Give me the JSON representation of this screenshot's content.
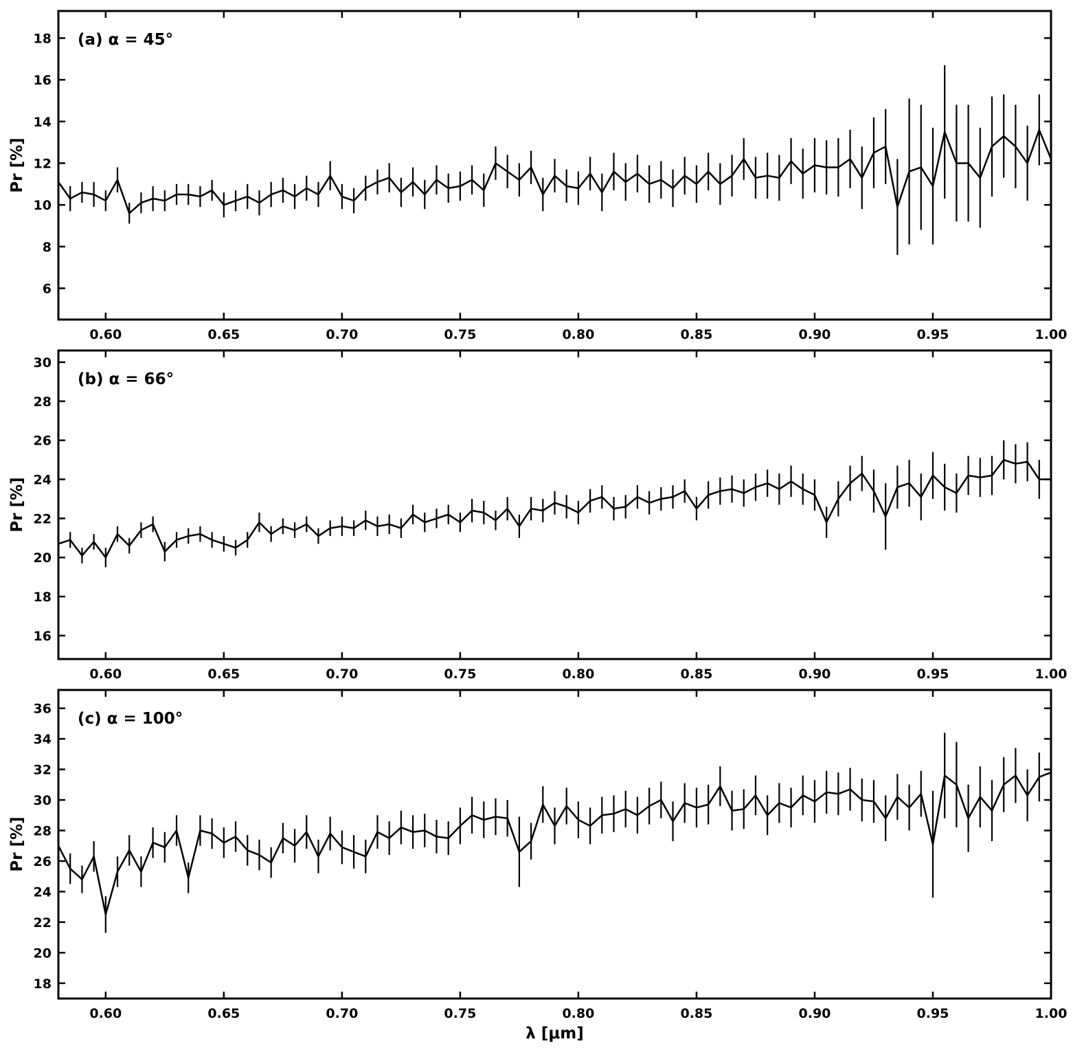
{
  "chart_data": [
    {
      "type": "line",
      "title": "(a) α = 45°",
      "ylabel": "Pr [%]",
      "color": "#000000",
      "x": [
        0.58,
        0.585,
        0.59,
        0.595,
        0.6,
        0.605,
        0.61,
        0.615,
        0.62,
        0.625,
        0.63,
        0.635,
        0.64,
        0.645,
        0.65,
        0.655,
        0.66,
        0.665,
        0.67,
        0.675,
        0.68,
        0.685,
        0.69,
        0.695,
        0.7,
        0.705,
        0.71,
        0.715,
        0.72,
        0.725,
        0.73,
        0.735,
        0.74,
        0.745,
        0.75,
        0.755,
        0.76,
        0.765,
        0.77,
        0.775,
        0.78,
        0.785,
        0.79,
        0.795,
        0.8,
        0.805,
        0.81,
        0.815,
        0.82,
        0.825,
        0.83,
        0.835,
        0.84,
        0.845,
        0.85,
        0.855,
        0.86,
        0.865,
        0.87,
        0.875,
        0.88,
        0.885,
        0.89,
        0.895,
        0.9,
        0.905,
        0.91,
        0.915,
        0.92,
        0.925,
        0.93,
        0.935,
        0.94,
        0.945,
        0.95,
        0.955,
        0.96,
        0.965,
        0.97,
        0.975,
        0.98,
        0.985,
        0.99,
        0.995,
        1.0
      ],
      "values": [
        11.1,
        10.3,
        10.6,
        10.5,
        10.2,
        11.2,
        9.6,
        10.1,
        10.3,
        10.2,
        10.5,
        10.5,
        10.4,
        10.7,
        10.0,
        10.2,
        10.4,
        10.1,
        10.5,
        10.7,
        10.4,
        10.8,
        10.5,
        11.4,
        10.4,
        10.2,
        10.8,
        11.1,
        11.3,
        10.6,
        11.1,
        10.5,
        11.2,
        10.8,
        10.9,
        11.2,
        10.7,
        12.0,
        11.6,
        11.2,
        11.8,
        10.5,
        11.4,
        10.9,
        10.8,
        11.5,
        10.6,
        11.6,
        11.1,
        11.5,
        11.0,
        11.2,
        10.8,
        11.4,
        11.0,
        11.6,
        11.0,
        11.4,
        12.2,
        11.3,
        11.4,
        11.3,
        12.1,
        11.5,
        11.9,
        11.8,
        11.8,
        12.2,
        11.3,
        12.5,
        12.8,
        9.9,
        11.6,
        11.8,
        10.9,
        13.5,
        12.0,
        12.0,
        11.3,
        12.8,
        13.3,
        12.8,
        12.0,
        13.6,
        12.2
      ],
      "errors": [
        0.6,
        0.6,
        0.5,
        0.6,
        0.5,
        0.6,
        0.5,
        0.5,
        0.6,
        0.5,
        0.5,
        0.5,
        0.5,
        0.5,
        0.6,
        0.5,
        0.6,
        0.6,
        0.6,
        0.6,
        0.6,
        0.6,
        0.6,
        0.7,
        0.6,
        0.6,
        0.6,
        0.6,
        0.7,
        0.7,
        0.7,
        0.7,
        0.7,
        0.7,
        0.7,
        0.7,
        0.8,
        0.8,
        0.8,
        0.8,
        0.8,
        0.8,
        0.8,
        0.8,
        0.8,
        0.8,
        0.9,
        0.9,
        0.9,
        0.9,
        0.9,
        0.9,
        0.9,
        0.9,
        0.9,
        0.9,
        1.0,
        1.0,
        1.0,
        1.0,
        1.1,
        1.1,
        1.1,
        1.2,
        1.3,
        1.3,
        1.4,
        1.4,
        1.5,
        1.7,
        1.8,
        2.3,
        3.5,
        3.0,
        2.8,
        3.2,
        2.8,
        2.8,
        2.4,
        2.4,
        2.0,
        2.0,
        1.8,
        1.7,
        1.6
      ],
      "xlim": [
        0.58,
        1.0
      ],
      "ylim": [
        4.5,
        19.3
      ],
      "xticks": [
        {
          "value": 0.6,
          "label": "0.60"
        },
        {
          "value": 0.65,
          "label": "0.65"
        },
        {
          "value": 0.7,
          "label": "0.70"
        },
        {
          "value": 0.75,
          "label": "0.75"
        },
        {
          "value": 0.8,
          "label": "0.80"
        },
        {
          "value": 0.85,
          "label": "0.85"
        },
        {
          "value": 0.9,
          "label": "0.90"
        },
        {
          "value": 0.95,
          "label": "0.95"
        },
        {
          "value": 1.0,
          "label": "1.00"
        }
      ],
      "yticks": [
        6,
        8,
        10,
        12,
        14,
        16,
        18
      ]
    },
    {
      "type": "line",
      "title": "(b) α = 66°",
      "ylabel": "Pr [%]",
      "color": "#000000",
      "x": [
        0.58,
        0.585,
        0.59,
        0.595,
        0.6,
        0.605,
        0.61,
        0.615,
        0.62,
        0.625,
        0.63,
        0.635,
        0.64,
        0.645,
        0.65,
        0.655,
        0.66,
        0.665,
        0.67,
        0.675,
        0.68,
        0.685,
        0.69,
        0.695,
        0.7,
        0.705,
        0.71,
        0.715,
        0.72,
        0.725,
        0.73,
        0.735,
        0.74,
        0.745,
        0.75,
        0.755,
        0.76,
        0.765,
        0.77,
        0.775,
        0.78,
        0.785,
        0.79,
        0.795,
        0.8,
        0.805,
        0.81,
        0.815,
        0.82,
        0.825,
        0.83,
        0.835,
        0.84,
        0.845,
        0.85,
        0.855,
        0.86,
        0.865,
        0.87,
        0.875,
        0.88,
        0.885,
        0.89,
        0.895,
        0.9,
        0.905,
        0.91,
        0.915,
        0.92,
        0.925,
        0.93,
        0.935,
        0.94,
        0.945,
        0.95,
        0.955,
        0.96,
        0.965,
        0.97,
        0.975,
        0.98,
        0.985,
        0.99,
        0.995,
        1.0
      ],
      "values": [
        20.7,
        20.9,
        20.1,
        20.8,
        20.0,
        21.2,
        20.6,
        21.4,
        21.7,
        20.3,
        20.9,
        21.1,
        21.2,
        20.9,
        20.7,
        20.5,
        20.9,
        21.8,
        21.2,
        21.6,
        21.4,
        21.7,
        21.1,
        21.5,
        21.6,
        21.5,
        21.9,
        21.6,
        21.7,
        21.5,
        22.2,
        21.8,
        22.0,
        22.2,
        21.8,
        22.4,
        22.3,
        21.9,
        22.5,
        21.6,
        22.5,
        22.4,
        22.8,
        22.6,
        22.3,
        22.9,
        23.1,
        22.5,
        22.6,
        23.1,
        22.8,
        23.0,
        23.1,
        23.4,
        22.5,
        23.2,
        23.4,
        23.5,
        23.3,
        23.6,
        23.8,
        23.5,
        23.9,
        23.5,
        23.2,
        21.8,
        23.0,
        23.8,
        24.3,
        23.4,
        22.1,
        23.6,
        23.8,
        23.1,
        24.2,
        23.6,
        23.3,
        24.2,
        24.1,
        24.2,
        25.0,
        24.8,
        24.9,
        24.0,
        24.0
      ],
      "errors": [
        0.5,
        0.4,
        0.4,
        0.4,
        0.5,
        0.4,
        0.4,
        0.4,
        0.4,
        0.5,
        0.4,
        0.4,
        0.4,
        0.4,
        0.4,
        0.4,
        0.4,
        0.5,
        0.4,
        0.4,
        0.4,
        0.4,
        0.4,
        0.4,
        0.5,
        0.4,
        0.5,
        0.5,
        0.5,
        0.5,
        0.5,
        0.5,
        0.5,
        0.5,
        0.5,
        0.6,
        0.6,
        0.5,
        0.6,
        0.6,
        0.6,
        0.6,
        0.6,
        0.6,
        0.6,
        0.6,
        0.6,
        0.6,
        0.6,
        0.6,
        0.6,
        0.6,
        0.6,
        0.6,
        0.6,
        0.7,
        0.7,
        0.7,
        0.7,
        0.7,
        0.7,
        0.8,
        0.8,
        0.8,
        0.8,
        0.8,
        0.9,
        0.9,
        0.9,
        1.1,
        1.7,
        1.1,
        1.2,
        1.2,
        1.2,
        1.2,
        1.0,
        1.0,
        1.0,
        1.0,
        1.0,
        1.0,
        1.0,
        1.0,
        0.9
      ],
      "xlim": [
        0.58,
        1.0
      ],
      "ylim": [
        14.8,
        30.6
      ],
      "xticks": [
        {
          "value": 0.6,
          "label": "0.60"
        },
        {
          "value": 0.65,
          "label": "0.65"
        },
        {
          "value": 0.7,
          "label": "0.70"
        },
        {
          "value": 0.75,
          "label": "0.75"
        },
        {
          "value": 0.8,
          "label": "0.80"
        },
        {
          "value": 0.85,
          "label": "0.85"
        },
        {
          "value": 0.9,
          "label": "0.90"
        },
        {
          "value": 0.95,
          "label": "0.95"
        },
        {
          "value": 1.0,
          "label": "1.00"
        }
      ],
      "yticks": [
        16,
        18,
        20,
        22,
        24,
        26,
        28,
        30
      ]
    },
    {
      "type": "line",
      "title": "(c) α = 100°",
      "ylabel": "Pr [%]",
      "xlabel": "λ [μm]",
      "color": "#000000",
      "x": [
        0.58,
        0.585,
        0.59,
        0.595,
        0.6,
        0.605,
        0.61,
        0.615,
        0.62,
        0.625,
        0.63,
        0.635,
        0.64,
        0.645,
        0.65,
        0.655,
        0.66,
        0.665,
        0.67,
        0.675,
        0.68,
        0.685,
        0.69,
        0.695,
        0.7,
        0.705,
        0.71,
        0.715,
        0.72,
        0.725,
        0.73,
        0.735,
        0.74,
        0.745,
        0.75,
        0.755,
        0.76,
        0.765,
        0.77,
        0.775,
        0.78,
        0.785,
        0.79,
        0.795,
        0.8,
        0.805,
        0.81,
        0.815,
        0.82,
        0.825,
        0.83,
        0.835,
        0.84,
        0.845,
        0.85,
        0.855,
        0.86,
        0.865,
        0.87,
        0.875,
        0.88,
        0.885,
        0.89,
        0.895,
        0.9,
        0.905,
        0.91,
        0.915,
        0.92,
        0.925,
        0.93,
        0.935,
        0.94,
        0.945,
        0.95,
        0.955,
        0.96,
        0.965,
        0.97,
        0.975,
        0.98,
        0.985,
        0.99,
        0.995,
        1.0
      ],
      "values": [
        27.0,
        25.5,
        24.8,
        26.3,
        22.5,
        25.3,
        26.7,
        25.3,
        27.2,
        26.9,
        28.0,
        24.9,
        28.0,
        27.8,
        27.2,
        27.6,
        26.7,
        26.4,
        25.9,
        27.5,
        27.0,
        27.9,
        26.3,
        27.8,
        26.9,
        26.6,
        26.3,
        27.9,
        27.5,
        28.2,
        27.9,
        28.0,
        27.6,
        27.5,
        28.3,
        29.0,
        28.7,
        28.9,
        28.8,
        26.6,
        27.3,
        29.7,
        28.3,
        29.6,
        28.7,
        28.3,
        29.0,
        29.1,
        29.4,
        29.0,
        29.6,
        30.0,
        28.6,
        29.8,
        29.5,
        29.7,
        30.9,
        29.3,
        29.4,
        30.3,
        29.0,
        29.8,
        29.5,
        30.3,
        29.9,
        30.5,
        30.4,
        30.7,
        30.0,
        29.9,
        28.8,
        30.2,
        29.5,
        30.4,
        27.1,
        31.6,
        31.0,
        28.8,
        30.2,
        29.3,
        31.0,
        31.6,
        30.3,
        31.5,
        31.8
      ],
      "errors": [
        1.0,
        1.0,
        0.9,
        1.0,
        1.2,
        1.0,
        1.0,
        1.0,
        1.0,
        1.0,
        1.0,
        1.0,
        1.0,
        1.0,
        1.0,
        1.0,
        1.0,
        1.0,
        1.0,
        1.0,
        1.1,
        1.1,
        1.1,
        1.1,
        1.1,
        1.1,
        1.1,
        1.1,
        1.1,
        1.1,
        1.1,
        1.1,
        1.1,
        1.1,
        1.2,
        1.2,
        1.2,
        1.2,
        1.2,
        2.3,
        1.2,
        1.2,
        1.2,
        1.2,
        1.2,
        1.2,
        1.2,
        1.2,
        1.2,
        1.2,
        1.2,
        1.2,
        1.3,
        1.3,
        1.3,
        1.3,
        1.3,
        1.3,
        1.3,
        1.3,
        1.3,
        1.3,
        1.3,
        1.3,
        1.4,
        1.4,
        1.4,
        1.4,
        1.4,
        1.4,
        1.5,
        1.5,
        1.5,
        1.5,
        3.5,
        2.8,
        2.8,
        2.2,
        2.0,
        2.0,
        1.8,
        1.8,
        1.7,
        1.6,
        1.5
      ],
      "xlim": [
        0.58,
        1.0
      ],
      "ylim": [
        17.0,
        37.2
      ],
      "xticks": [
        {
          "value": 0.6,
          "label": "0.60"
        },
        {
          "value": 0.65,
          "label": "0.65"
        },
        {
          "value": 0.7,
          "label": "0.70"
        },
        {
          "value": 0.75,
          "label": "0.75"
        },
        {
          "value": 0.8,
          "label": "0.80"
        },
        {
          "value": 0.85,
          "label": "0.85"
        },
        {
          "value": 0.9,
          "label": "0.90"
        },
        {
          "value": 0.95,
          "label": "0.95"
        },
        {
          "value": 1.0,
          "label": "1.00"
        }
      ],
      "yticks": [
        18,
        20,
        22,
        24,
        26,
        28,
        30,
        32,
        34,
        36
      ]
    }
  ]
}
